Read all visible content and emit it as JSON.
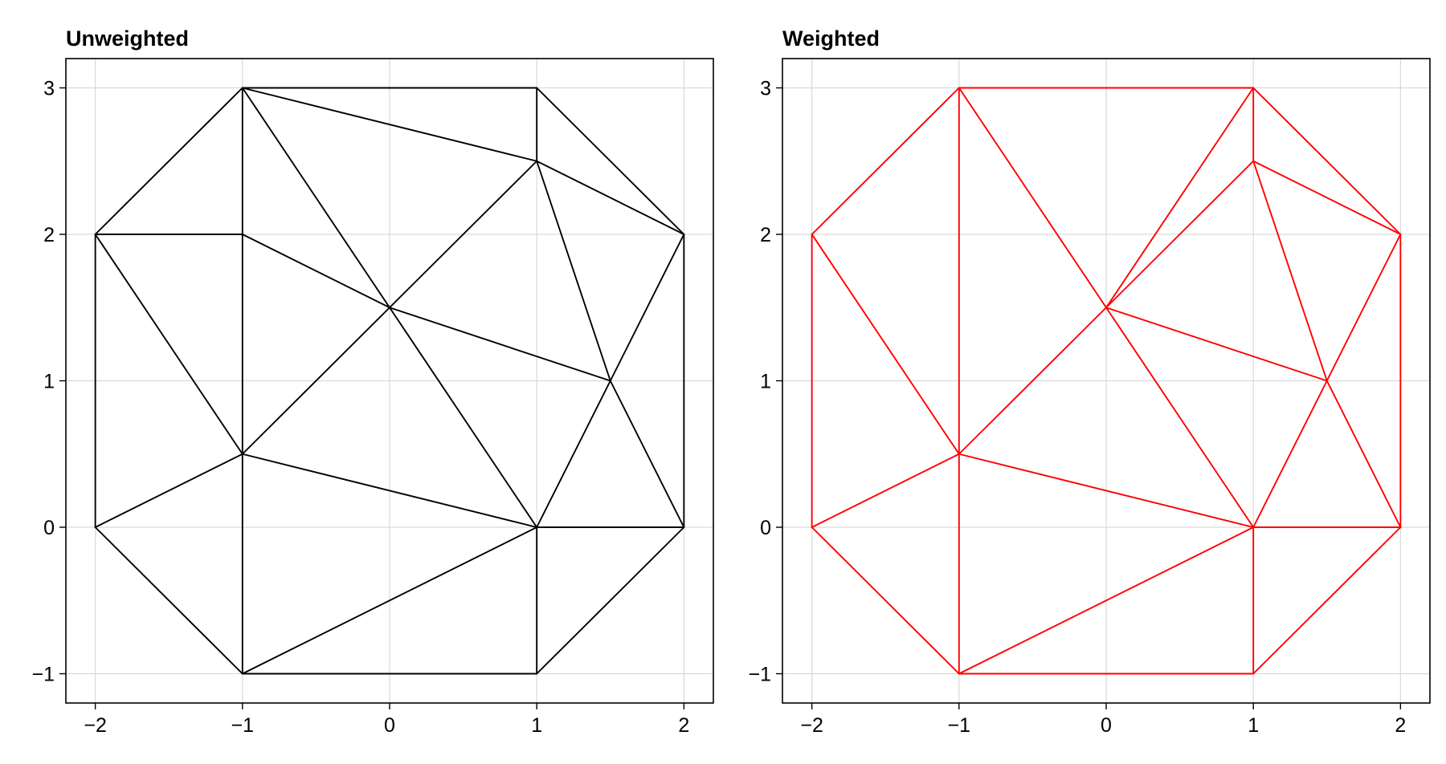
{
  "chart_data": [
    {
      "type": "line",
      "title": "Unweighted",
      "xlabel": "",
      "ylabel": "",
      "xlim": [
        -2.2,
        2.2
      ],
      "ylim": [
        -1.2,
        3.2
      ],
      "xticks": [
        -2,
        -1,
        0,
        1,
        2
      ],
      "yticks": [
        -1,
        0,
        1,
        2,
        3
      ],
      "xtick_labels": [
        "−2",
        "−1",
        "0",
        "1",
        "2"
      ],
      "ytick_labels": [
        "−1",
        "0",
        "1",
        "2",
        "3"
      ],
      "grid": true,
      "color": "#000000",
      "edges": [
        [
          [
            -1,
            3
          ],
          [
            1,
            3
          ]
        ],
        [
          [
            1,
            3
          ],
          [
            2,
            2
          ]
        ],
        [
          [
            2,
            2
          ],
          [
            2,
            0
          ]
        ],
        [
          [
            2,
            0
          ],
          [
            1,
            -1
          ]
        ],
        [
          [
            1,
            -1
          ],
          [
            -1,
            -1
          ]
        ],
        [
          [
            -1,
            -1
          ],
          [
            -2,
            0
          ]
        ],
        [
          [
            -2,
            0
          ],
          [
            -2,
            2
          ]
        ],
        [
          [
            -2,
            2
          ],
          [
            -1,
            3
          ]
        ],
        [
          [
            -1,
            3
          ],
          [
            1,
            2.5
          ]
        ],
        [
          [
            1,
            3
          ],
          [
            1,
            2.5
          ]
        ],
        [
          [
            1,
            2.5
          ],
          [
            2,
            2
          ]
        ],
        [
          [
            -1,
            3
          ],
          [
            -1,
            -1
          ]
        ],
        [
          [
            -1,
            3
          ],
          [
            0,
            1.5
          ]
        ],
        [
          [
            -2,
            2
          ],
          [
            -1,
            2
          ]
        ],
        [
          [
            -1,
            2
          ],
          [
            0,
            1.5
          ]
        ],
        [
          [
            -2,
            2
          ],
          [
            -1,
            0.5
          ]
        ],
        [
          [
            -1,
            0.5
          ],
          [
            1,
            2.5
          ]
        ],
        [
          [
            1,
            2.5
          ],
          [
            1.5,
            1
          ]
        ],
        [
          [
            0,
            1.5
          ],
          [
            1.5,
            1
          ]
        ],
        [
          [
            2,
            2
          ],
          [
            1.5,
            1
          ]
        ],
        [
          [
            0,
            1.5
          ],
          [
            1,
            0
          ]
        ],
        [
          [
            1.5,
            1
          ],
          [
            2,
            0
          ]
        ],
        [
          [
            1.5,
            1
          ],
          [
            1,
            0
          ]
        ],
        [
          [
            -2,
            0
          ],
          [
            -1,
            0.5
          ]
        ],
        [
          [
            -1,
            0.5
          ],
          [
            1,
            0
          ]
        ],
        [
          [
            1,
            0
          ],
          [
            2,
            0
          ]
        ],
        [
          [
            1,
            0
          ],
          [
            -1,
            -1
          ]
        ],
        [
          [
            1,
            0
          ],
          [
            1,
            -1
          ]
        ]
      ]
    },
    {
      "type": "line",
      "title": "Weighted",
      "xlabel": "",
      "ylabel": "",
      "xlim": [
        -2.2,
        2.2
      ],
      "ylim": [
        -1.2,
        3.2
      ],
      "xticks": [
        -2,
        -1,
        0,
        1,
        2
      ],
      "yticks": [
        -1,
        0,
        1,
        2,
        3
      ],
      "xtick_labels": [
        "−2",
        "−1",
        "0",
        "1",
        "2"
      ],
      "ytick_labels": [
        "−1",
        "0",
        "1",
        "2",
        "3"
      ],
      "grid": true,
      "color": "#ff0000",
      "edges": [
        [
          [
            -1,
            3
          ],
          [
            1,
            3
          ]
        ],
        [
          [
            1,
            3
          ],
          [
            2,
            2
          ]
        ],
        [
          [
            2,
            2
          ],
          [
            2,
            0
          ]
        ],
        [
          [
            2,
            0
          ],
          [
            1,
            -1
          ]
        ],
        [
          [
            1,
            -1
          ],
          [
            -1,
            -1
          ]
        ],
        [
          [
            -1,
            -1
          ],
          [
            -2,
            0
          ]
        ],
        [
          [
            -2,
            0
          ],
          [
            -2,
            2
          ]
        ],
        [
          [
            -2,
            2
          ],
          [
            -1,
            3
          ]
        ],
        [
          [
            -1,
            3
          ],
          [
            -1,
            -1
          ]
        ],
        [
          [
            -1,
            3
          ],
          [
            0,
            1.5
          ]
        ],
        [
          [
            1,
            3
          ],
          [
            0,
            1.5
          ]
        ],
        [
          [
            1,
            3
          ],
          [
            1,
            2.5
          ]
        ],
        [
          [
            1,
            2.5
          ],
          [
            0,
            1.5
          ]
        ],
        [
          [
            1,
            2.5
          ],
          [
            2,
            2
          ]
        ],
        [
          [
            1,
            2.5
          ],
          [
            1.5,
            1
          ]
        ],
        [
          [
            2,
            2
          ],
          [
            1.5,
            1
          ]
        ],
        [
          [
            0,
            1.5
          ],
          [
            1.5,
            1
          ]
        ],
        [
          [
            0,
            1.5
          ],
          [
            -1,
            0.5
          ]
        ],
        [
          [
            -2,
            2
          ],
          [
            -1,
            0.5
          ]
        ],
        [
          [
            0,
            1.5
          ],
          [
            1,
            0
          ]
        ],
        [
          [
            1.5,
            1
          ],
          [
            1,
            0
          ]
        ],
        [
          [
            1.5,
            1
          ],
          [
            2,
            0
          ]
        ],
        [
          [
            -2,
            0
          ],
          [
            -1,
            0.5
          ]
        ],
        [
          [
            -1,
            0.5
          ],
          [
            1,
            0
          ]
        ],
        [
          [
            1,
            0
          ],
          [
            2,
            0
          ]
        ],
        [
          [
            1,
            0
          ],
          [
            -1,
            -1
          ]
        ],
        [
          [
            1,
            0
          ],
          [
            1,
            -1
          ]
        ]
      ]
    }
  ]
}
